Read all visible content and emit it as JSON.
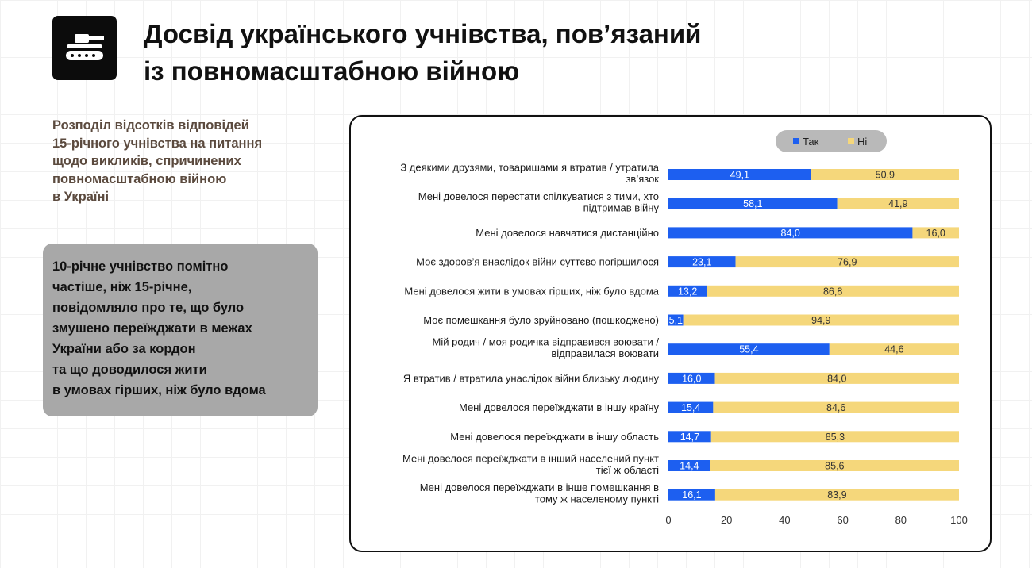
{
  "header": {
    "title_lines": [
      "Досвід українського учнівства, пов’язаний",
      "із повномасштабною війною"
    ],
    "icon": "tank-icon"
  },
  "subtitle_lines": [
    "Розподіл відсотків відповідей",
    "15-річного учнівства на питання",
    "щодо викликів, спричинених",
    "повномасштабною війною",
    "в Україні"
  ],
  "note_lines": [
    "10-річне учнівство помітно",
    "частіше, ніж 15-річне,",
    "повідомляло про те, що було",
    "змушено переїжджати в межах",
    "України або за кордон",
    "та що доводилося жити",
    "в умовах гірших, ніж було вдома"
  ],
  "colors": {
    "yes": "#1d5ff0",
    "no": "#f5d77b",
    "legend_bg": "#b9b9b9",
    "note_bg": "#a8a8a8"
  },
  "chart_data": {
    "type": "bar",
    "orientation": "horizontal",
    "stacked": true,
    "categories": [
      [
        "З деякими друзями, товаришами я втратив / утратила",
        "зв’язок"
      ],
      [
        "Мені довелося перестати спілкуватися з тими, хто",
        "підтримав війну"
      ],
      [
        "Мені довелося навчатися дистанційно"
      ],
      [
        "Моє здоров’я внаслідок війни суттєво погіршилося"
      ],
      [
        "Мені довелося жити в умовах гірших, ніж було вдома"
      ],
      [
        "Моє помешкання було зруйновано (пошкоджено)"
      ],
      [
        "Мій родич / моя родичка відправився воювати /",
        "відправилася воювати"
      ],
      [
        "Я втратив / втратила унаслідок війни близьку людину"
      ],
      [
        "Мені довелося переїжджати в іншу країну"
      ],
      [
        "Мені довелося переїжджати в іншу область"
      ],
      [
        "Мені довелося переїжджати в інший населений пункт",
        "тієї ж області"
      ],
      [
        "Мені довелося переїжджати в інше помешкання в",
        "тому ж населеному пункті"
      ]
    ],
    "series": [
      {
        "name": "Так",
        "values": [
          49.1,
          58.1,
          84.0,
          23.1,
          13.2,
          5.1,
          55.4,
          16.0,
          15.4,
          14.7,
          14.4,
          16.1
        ],
        "labels": [
          "49,1",
          "58,1",
          "84,0",
          "23,1",
          "13,2",
          "5,1",
          "55,4",
          "16,0",
          "15,4",
          "14,7",
          "14,4",
          "16,1"
        ]
      },
      {
        "name": "Ні",
        "values": [
          50.9,
          41.9,
          16.0,
          76.9,
          86.8,
          94.9,
          44.6,
          84.0,
          84.6,
          85.3,
          85.6,
          83.9
        ],
        "labels": [
          "50,9",
          "41,9",
          "16,0",
          "76,9",
          "86,8",
          "94,9",
          "44,6",
          "84,0",
          "84,6",
          "85,3",
          "85,6",
          "83,9"
        ]
      }
    ],
    "xlim": [
      0,
      100
    ],
    "xticks": [
      "0",
      "20",
      "40",
      "60",
      "80",
      "100"
    ],
    "legend": "top-right",
    "grid": false
  }
}
